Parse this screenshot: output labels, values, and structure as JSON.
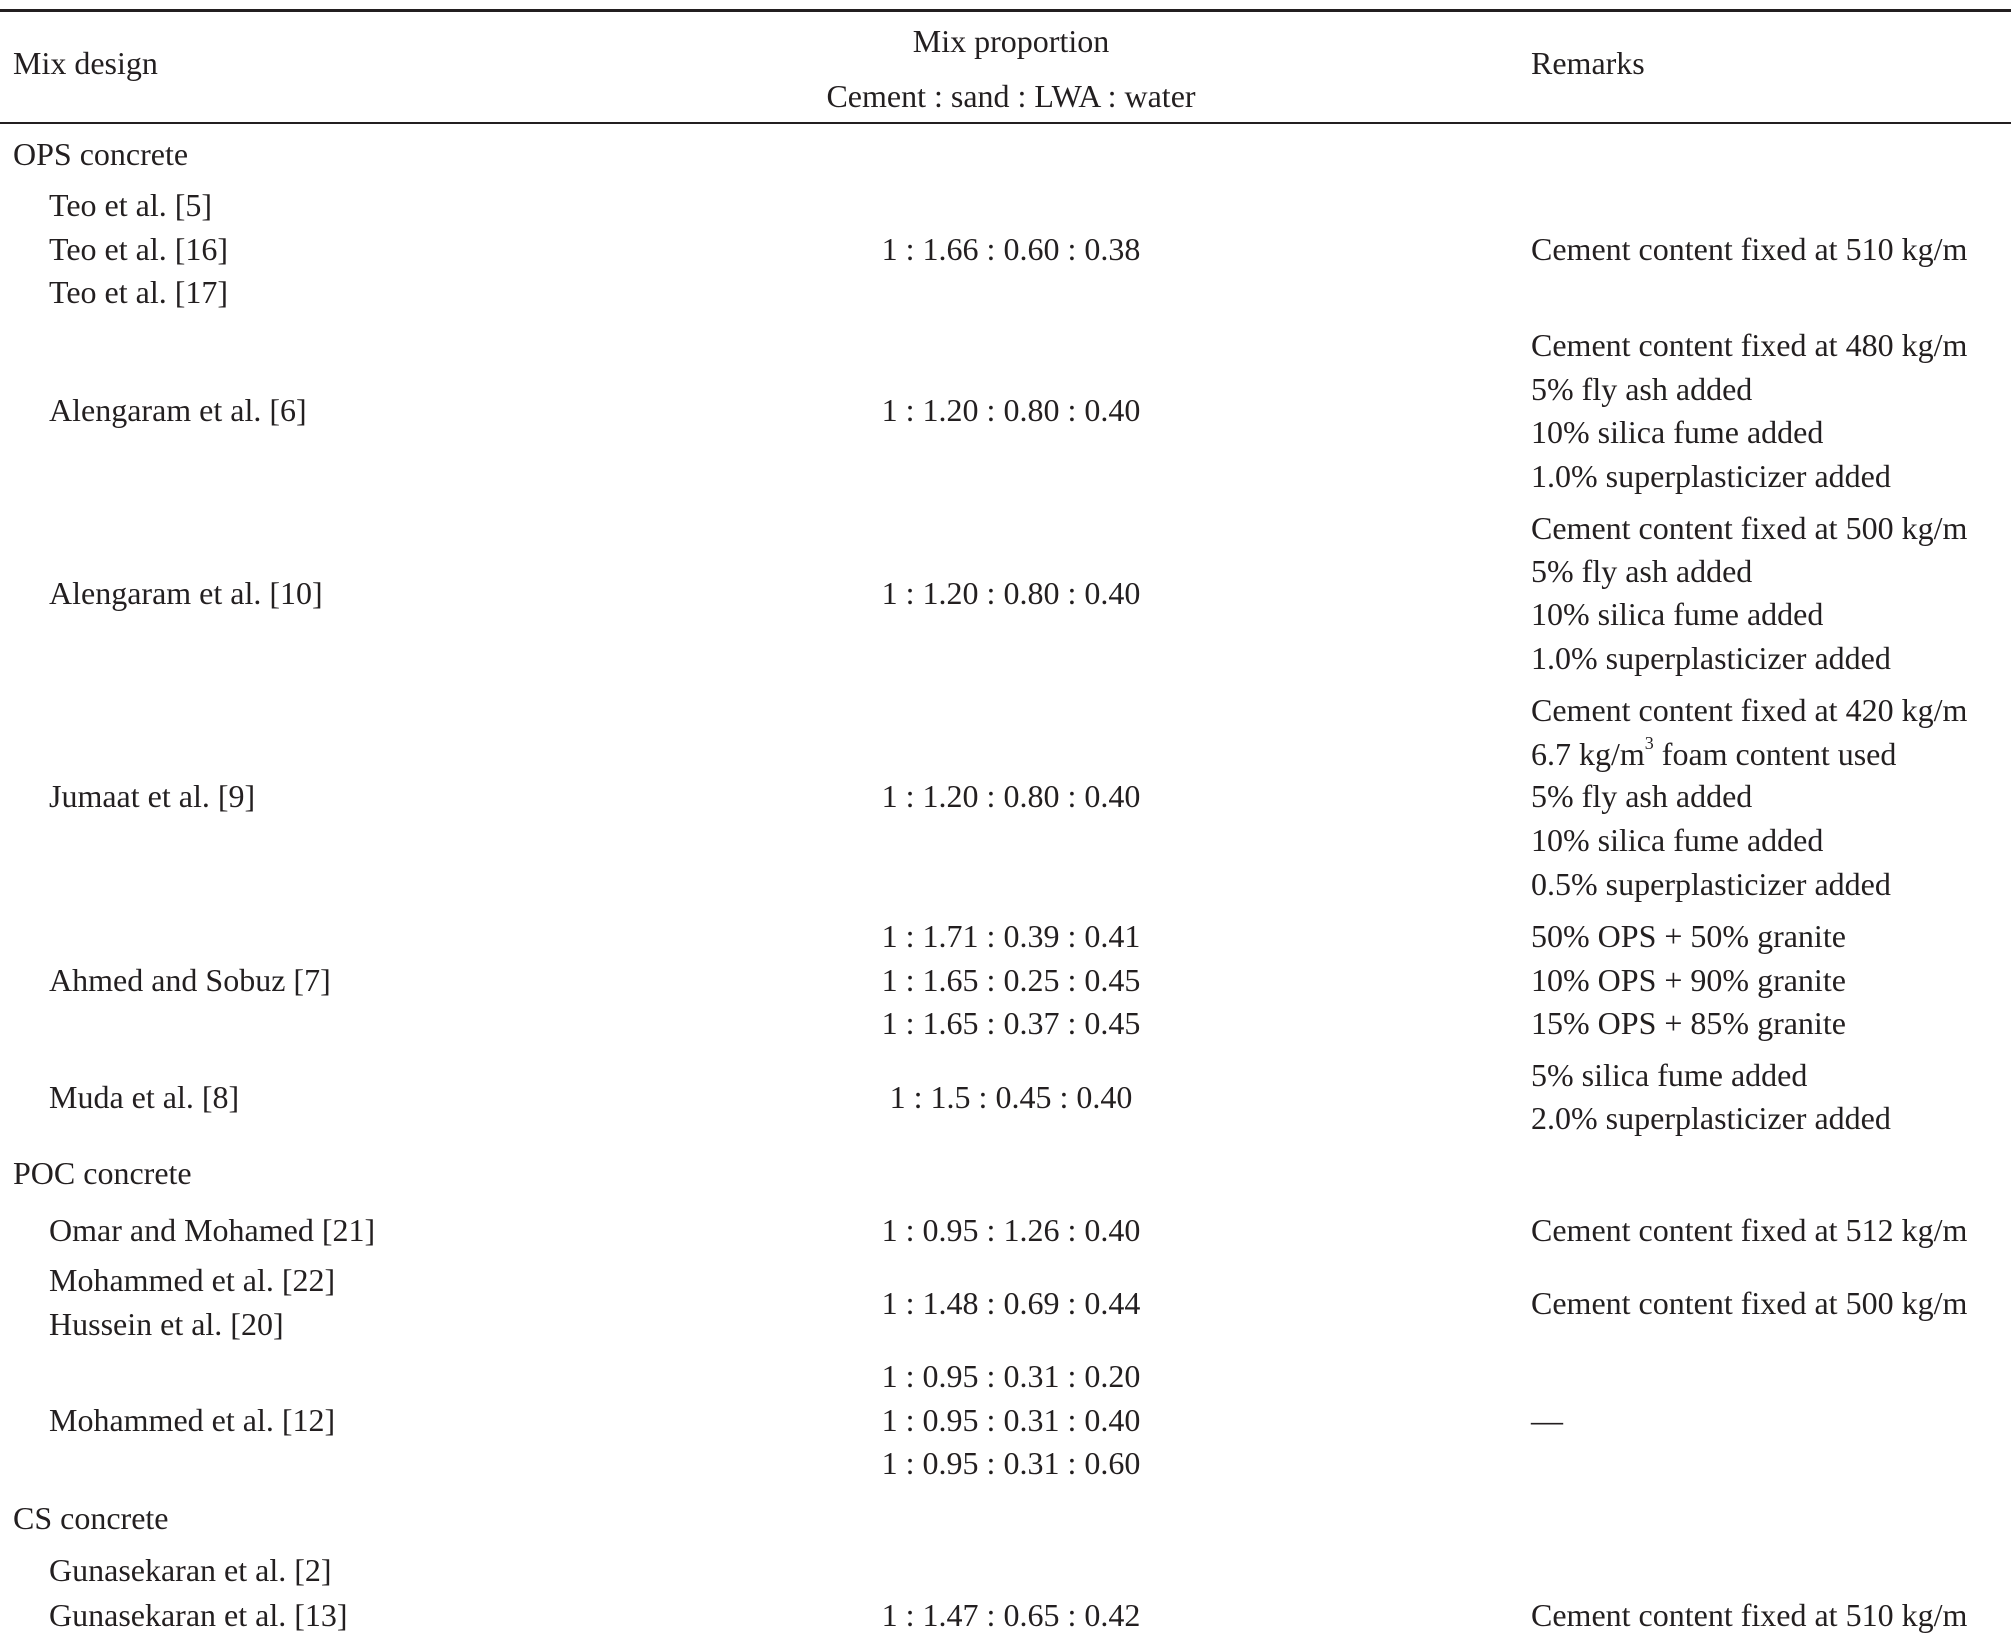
{
  "header": {
    "col1": "Mix design",
    "col2_line1": "Mix proportion",
    "col2_line2": "Cement : sand : LWA : water",
    "col3": "Remarks"
  },
  "groups": [
    {
      "title": "OPS concrete",
      "rows": [
        {
          "refs": [
            "Teo et al. [5]",
            "Teo et al. [16]",
            "Teo et al. [17]"
          ],
          "proportions": [
            "1 : 1.66 : 0.60 : 0.38"
          ],
          "remarks": [
            "Cement content fixed at 510 kg/m"
          ]
        },
        {
          "refs": [
            "Alengaram et al. [6]"
          ],
          "proportions": [
            "1 : 1.20 : 0.80 : 0.40"
          ],
          "remarks": [
            "Cement content fixed at 480 kg/m",
            "5% fly ash added",
            "10% silica fume added",
            "1.0% superplasticizer added"
          ]
        },
        {
          "refs": [
            "Alengaram et al. [10]"
          ],
          "proportions": [
            "1 : 1.20 : 0.80 : 0.40"
          ],
          "remarks": [
            "Cement content fixed at 500 kg/m",
            "5% fly ash added",
            "10% silica fume added",
            "1.0% superplasticizer added"
          ]
        },
        {
          "refs": [
            "Jumaat et al. [9]"
          ],
          "proportions": [
            "1 : 1.20 : 0.80 : 0.40"
          ],
          "remarks": [
            "Cement content fixed at 420 kg/m",
            "6.7 kg/m",
            "3",
            " foam content used",
            "5% fly ash added",
            "10% silica fume added",
            "0.5% superplasticizer added"
          ]
        },
        {
          "refs": [
            "Ahmed and Sobuz [7]"
          ],
          "proportions": [
            "1 : 1.71 : 0.39 : 0.41",
            "1 : 1.65 : 0.25 : 0.45",
            "1 : 1.65 : 0.37 : 0.45"
          ],
          "remarks": [
            "50% OPS + 50% granite",
            "10% OPS + 90% granite",
            "15% OPS + 85% granite"
          ]
        },
        {
          "refs": [
            "Muda et al. [8]"
          ],
          "proportions": [
            "1 : 1.5 : 0.45 : 0.40"
          ],
          "remarks": [
            "5% silica fume added",
            "2.0% superplasticizer added"
          ]
        }
      ]
    },
    {
      "title": "POC concrete",
      "rows": [
        {
          "refs": [
            "Omar and Mohamed [21]"
          ],
          "proportions": [
            "1 : 0.95 : 1.26 : 0.40"
          ],
          "remarks": [
            "Cement content fixed at 512 kg/m"
          ]
        },
        {
          "refs": [
            "Mohammed et al. [22]",
            "Hussein et al. [20]"
          ],
          "proportions": [
            "1 : 1.48 : 0.69 : 0.44"
          ],
          "remarks": [
            "Cement content fixed at 500 kg/m"
          ]
        },
        {
          "refs": [
            "Mohammed et al. [12]"
          ],
          "proportions": [
            "1 : 0.95 : 0.31 : 0.20",
            "1 : 0.95 : 0.31 : 0.40",
            "1 : 0.95 : 0.31 : 0.60"
          ],
          "remarks": [
            "—"
          ]
        }
      ]
    },
    {
      "title": "CS concrete",
      "rows": [
        {
          "refs": [
            "Gunasekaran et al. [2]",
            "Gunasekaran et al. [13]"
          ],
          "proportions": [
            "1 : 1.47 : 0.65 : 0.42"
          ],
          "remarks": [
            "Cement content fixed at 510 kg/m"
          ]
        }
      ]
    }
  ]
}
